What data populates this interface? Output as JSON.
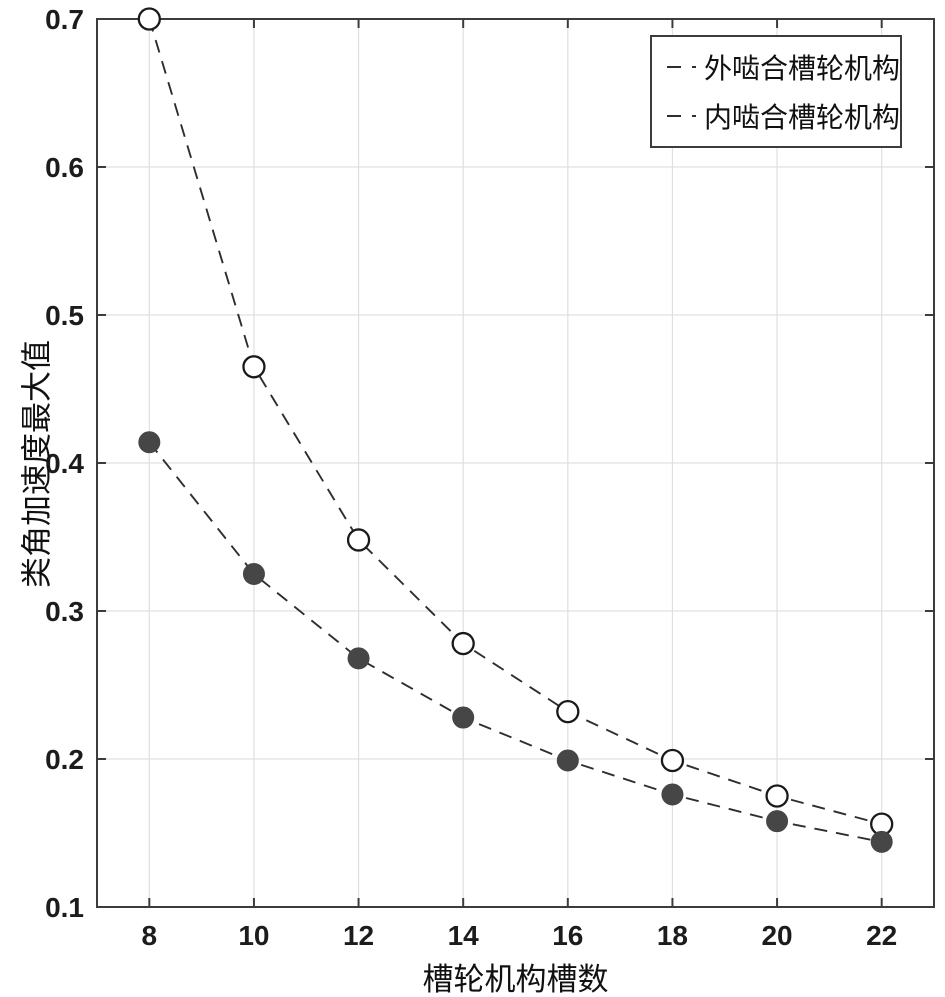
{
  "figure": {
    "background": "#ffffff"
  },
  "chart_data": {
    "type": "line",
    "title": "",
    "xlabel": "槽轮机构槽数",
    "ylabel": "类角加速度最大值",
    "x": [
      8,
      10,
      12,
      14,
      16,
      18,
      20,
      22
    ],
    "series": [
      {
        "key": "external-geneva",
        "name": "外啮合槽轮机构",
        "marker": "open-circle",
        "line_style": "dashed",
        "values": [
          0.7,
          0.465,
          0.348,
          0.278,
          0.232,
          0.199,
          0.175,
          0.156
        ]
      },
      {
        "key": "internal-geneva",
        "name": "内啮合槽轮机构",
        "marker": "filled-circle",
        "line_style": "dashed",
        "values": [
          0.414,
          0.325,
          0.268,
          0.228,
          0.199,
          0.176,
          0.158,
          0.144
        ]
      }
    ],
    "xlim": [
      7,
      23
    ],
    "ylim": [
      0.1,
      0.7
    ],
    "xticks": [
      8,
      10,
      12,
      14,
      16,
      18,
      20,
      22
    ],
    "yticks": [
      0.1,
      0.2,
      0.3,
      0.4,
      0.5,
      0.6,
      0.7
    ],
    "xtick_labels": [
      "8",
      "10",
      "12",
      "14",
      "16",
      "18",
      "20",
      "22"
    ],
    "ytick_labels": [
      "0.1",
      "0.2",
      "0.3",
      "0.4",
      "0.5",
      "0.6",
      "0.7"
    ],
    "grid": true,
    "box": true,
    "legend_position": "top-right",
    "colors": {
      "line": "#2e2e2e",
      "open_marker_fill": "#ffffff",
      "filled_marker_fill": "#464646",
      "marker_edge": "#1a1a1a",
      "grid": "#e0e0e0",
      "axis": "#3c3c3c",
      "tick_label": "#1c1c1c",
      "label": "#111111",
      "legend_border": "#3c3c3c",
      "background": "#ffffff"
    }
  }
}
